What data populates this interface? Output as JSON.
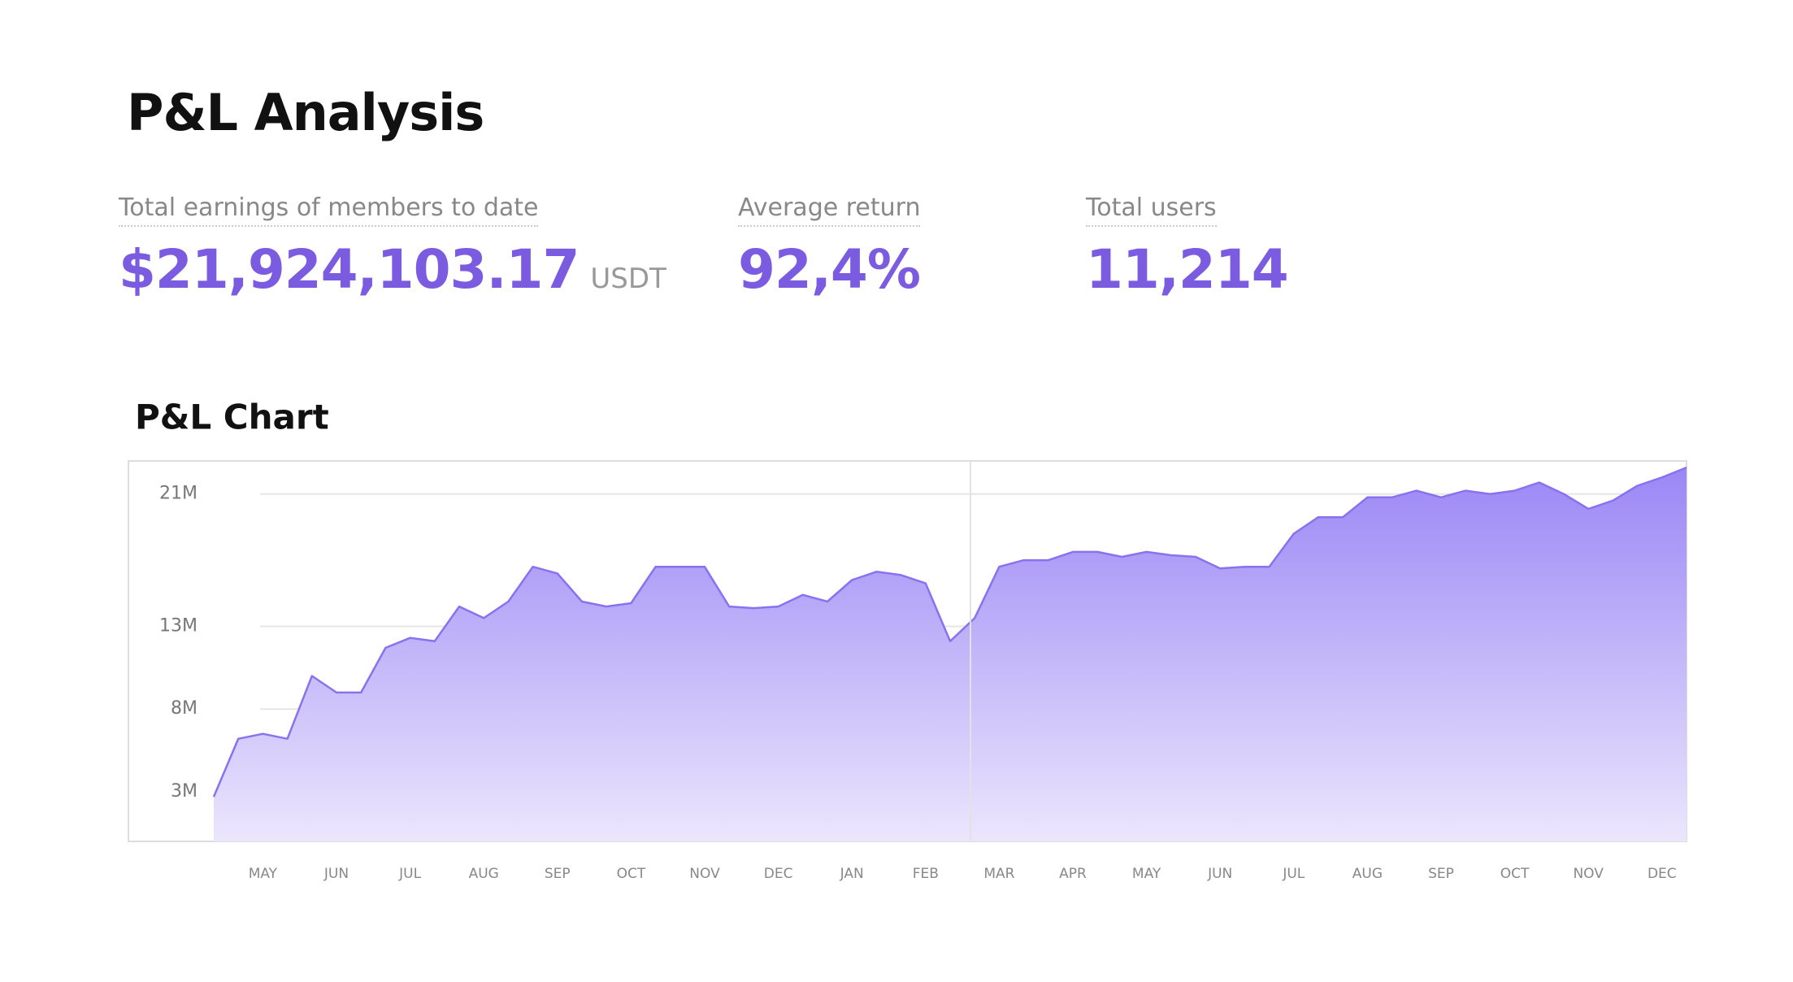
{
  "header": {
    "title": "P&L Analysis"
  },
  "stats": [
    {
      "label": "Total earnings of members to date",
      "value": "$21,924,103.17",
      "unit": "USDT"
    },
    {
      "label": "Average return",
      "value": "92,4%"
    },
    {
      "label": "Total users",
      "value": "11,214"
    }
  ],
  "chart_data": {
    "type": "area",
    "title": "P&L Chart",
    "color": "#8a72ee",
    "grid": true,
    "categories": [
      null,
      null,
      "MAY",
      null,
      null,
      "JUN",
      null,
      null,
      "JUL",
      null,
      null,
      "AUG",
      null,
      null,
      "SEP",
      null,
      null,
      "OCT",
      null,
      null,
      "NOV",
      null,
      null,
      "DEC",
      null,
      null,
      "JAN",
      null,
      null,
      "FEB",
      null,
      null,
      "MAR",
      null,
      null,
      "APR",
      null,
      null,
      "MAY",
      null,
      null,
      "JUN",
      null,
      null,
      "JUL",
      null,
      null,
      "AUG",
      null,
      null,
      "SEP",
      null,
      null,
      "OCT",
      null,
      null,
      "NOV",
      null,
      null,
      "DEC",
      null
    ],
    "values": [
      2700000,
      6200000,
      6500000,
      6200000,
      10000000,
      9000000,
      9000000,
      11700000,
      12300000,
      12100000,
      14200000,
      13500000,
      14500000,
      16600000,
      16200000,
      14500000,
      14200000,
      14400000,
      16600000,
      16600000,
      16600000,
      14200000,
      14100000,
      14200000,
      14900000,
      14500000,
      15800000,
      16300000,
      16100000,
      15600000,
      12100000,
      13500000,
      16600000,
      17000000,
      17000000,
      17500000,
      17500000,
      17200000,
      17500000,
      17300000,
      17200000,
      16500000,
      16600000,
      16600000,
      18600000,
      19600000,
      19600000,
      20800000,
      20800000,
      21200000,
      20800000,
      21200000,
      21000000,
      21200000,
      21700000,
      21000000,
      20100000,
      20600000,
      21500000,
      22000000,
      22600000
    ],
    "ylim": [
      0,
      23000000
    ],
    "yticks": [
      {
        "value": 3000000,
        "label": "3M"
      },
      {
        "value": 8000000,
        "label": "8M"
      },
      {
        "value": 13000000,
        "label": "13M"
      },
      {
        "value": 21000000,
        "label": "21M"
      }
    ]
  }
}
